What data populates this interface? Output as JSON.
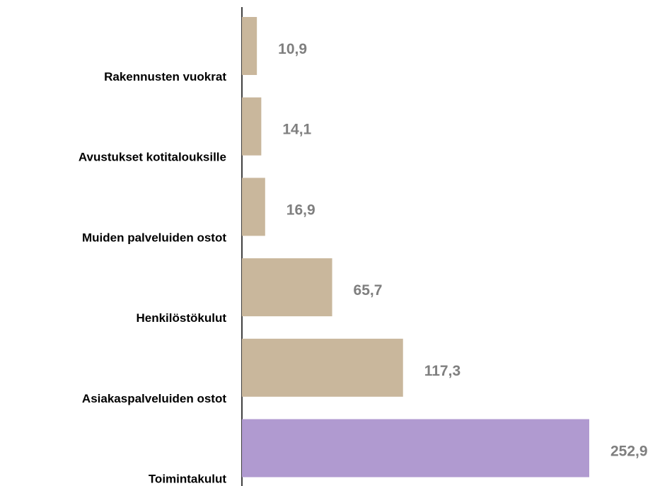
{
  "chart_data": {
    "type": "bar",
    "orientation": "horizontal",
    "categories": [
      "Rakennusten vuokrat",
      "Avustukset kotitalouksille",
      "Muiden palveluiden ostot",
      "Henkilöstökulut",
      "Asiakaspalveluiden ostot",
      "Toimintakulut"
    ],
    "values": [
      10.9,
      14.1,
      16.9,
      65.7,
      117.3,
      252.9
    ],
    "value_labels": [
      "10,9",
      "14,1",
      "16,9",
      "65,7",
      "117,3",
      "252,9"
    ],
    "colors": [
      "#c9b79c",
      "#c9b79c",
      "#c9b79c",
      "#c9b79c",
      "#c9b79c",
      "#b09ad0"
    ]
  }
}
